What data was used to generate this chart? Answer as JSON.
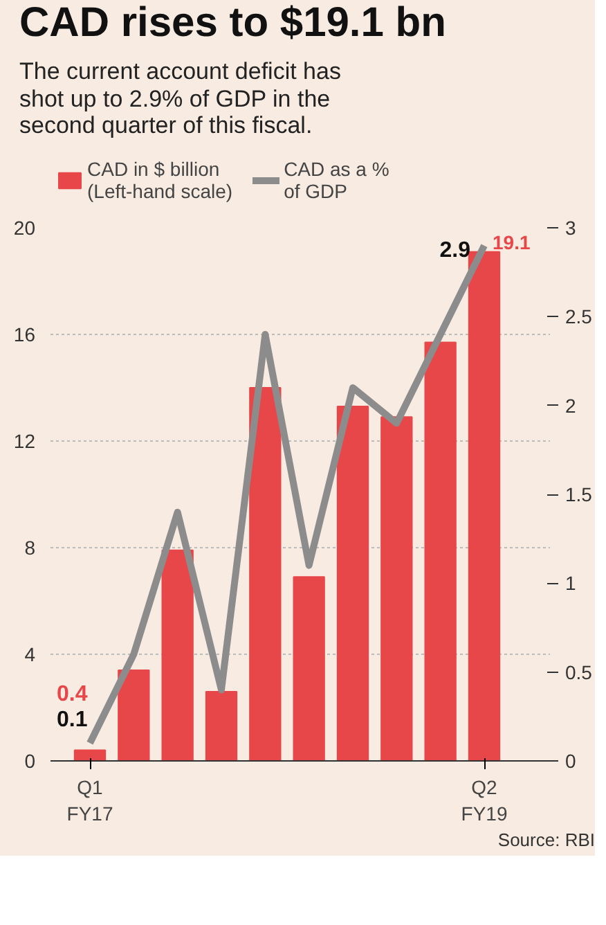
{
  "chart_data": {
    "type": "bar",
    "title": "CAD rises to $19.1 bn",
    "subtitle": "The current account deficit has\nshot up to 2.9% of GDP in the\nsecond quarter of this fiscal.",
    "categories": [
      "Q1\nFY17",
      null,
      null,
      null,
      null,
      null,
      null,
      null,
      null,
      "Q2\nFY19"
    ],
    "series": [
      {
        "name": "CAD in $ billion\n(Left-hand scale)",
        "color": "#e8474a",
        "values": [
          0.4,
          3.4,
          7.9,
          2.6,
          14.0,
          6.9,
          13.3,
          12.9,
          15.7,
          19.1
        ],
        "value_labels": [
          "0.4",
          null,
          null,
          null,
          null,
          null,
          null,
          null,
          null,
          "19.1"
        ]
      },
      {
        "name": "CAD as a %\nof GDP",
        "type": "line",
        "axis": "y2",
        "color": "#8c8c8c",
        "values": [
          0.1,
          0.6,
          1.4,
          0.4,
          2.4,
          1.1,
          2.1,
          1.9,
          2.4,
          2.9
        ],
        "value_labels": [
          "0.1",
          null,
          null,
          null,
          null,
          null,
          null,
          null,
          null,
          "2.9"
        ]
      }
    ],
    "ylim": [
      0,
      20
    ],
    "yticks": [
      0,
      4,
      8,
      12,
      16,
      20
    ],
    "y2lim": [
      0,
      3
    ],
    "y2ticks": [
      0,
      0.5,
      1,
      1.5,
      2,
      2.5,
      3
    ],
    "grid": "y",
    "legend": "top",
    "annotations": [
      "Source: RBI"
    ]
  }
}
